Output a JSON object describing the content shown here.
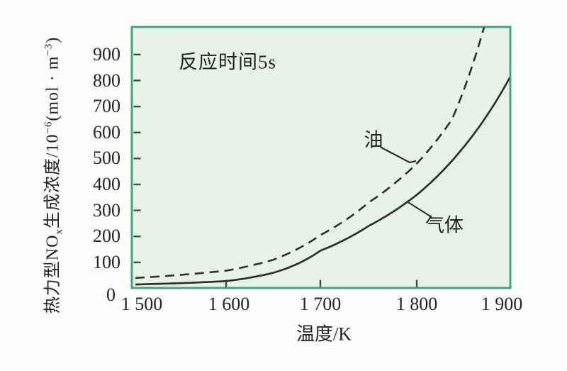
{
  "colors": {
    "frame": "#43a57e",
    "plot_fill": "#e7f3e8",
    "curve": "#2d2f2b",
    "tick": "#2f5546",
    "text": "#232323",
    "page_background": "#fdfdfd"
  },
  "chart": {
    "annotation": "反应时间5s",
    "x_axis": {
      "title": "温度/K",
      "tick_labels": [
        "1 500",
        "1 600",
        "1 700",
        "1 800",
        "1 900"
      ]
    },
    "y_axis": {
      "tick_labels": [
        "900",
        "800",
        "700",
        "600",
        "500",
        "400",
        "300",
        "200",
        "100",
        "0"
      ],
      "label_segments": {
        "base1": "热力型NO",
        "sub1": "x",
        "base2": "生成浓度/10",
        "sup1": "−6",
        "base3": "(mol · m",
        "sup2": "−3",
        "base4": ")"
      }
    },
    "series_labels": {
      "oil": "油",
      "gas": "气体"
    }
  },
  "chart_data": {
    "type": "line",
    "title": "反应时间5s",
    "xlabel": "温度/K",
    "ylabel": "热力型NOx生成浓度/10⁻⁶(mol·m⁻³)",
    "xlim": [
      1490,
      1907
    ],
    "ylim": [
      0,
      1010
    ],
    "x_ticks": [
      1500,
      1600,
      1700,
      1800,
      1900
    ],
    "y_ticks": [
      0,
      100,
      200,
      300,
      400,
      500,
      600,
      700,
      800,
      900
    ],
    "x_tick_marks": [
      1600,
      1700,
      1800
    ],
    "y_tick_marks": [
      100,
      200,
      300,
      400,
      500,
      600,
      700,
      800,
      900
    ],
    "grid": false,
    "legend_position": "inline-labels",
    "series": [
      {
        "name": "油",
        "line_style": "dashed",
        "points": [
          [
            1500,
            40
          ],
          [
            1550,
            52
          ],
          [
            1600,
            68
          ],
          [
            1650,
            110
          ],
          [
            1700,
            205
          ],
          [
            1750,
            330
          ],
          [
            1800,
            480
          ],
          [
            1840,
            650
          ],
          [
            1877,
            1010
          ]
        ]
      },
      {
        "name": "气体",
        "line_style": "solid",
        "points": [
          [
            1500,
            15
          ],
          [
            1550,
            20
          ],
          [
            1600,
            28
          ],
          [
            1650,
            60
          ],
          [
            1700,
            145
          ],
          [
            1750,
            240
          ],
          [
            1800,
            360
          ],
          [
            1850,
            530
          ],
          [
            1906,
            812
          ]
        ]
      }
    ]
  }
}
